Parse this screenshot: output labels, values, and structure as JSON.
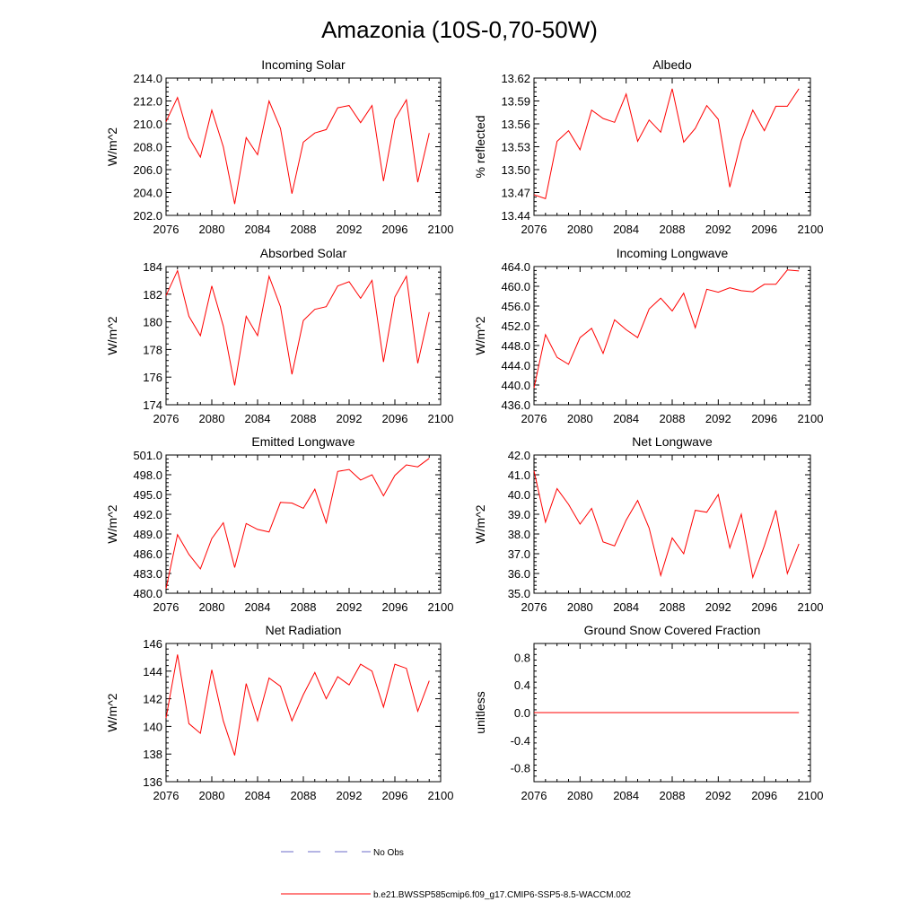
{
  "figure_title": "Amazonia (10S-0,70-50W)",
  "legend": {
    "entries": [
      {
        "label": "No Obs",
        "color": "#6b6bc8",
        "style": "dashed"
      },
      {
        "label": "b.e21.BWSSP585cmip6.f09_g17.CMIP6-SSP5-8.5-WACCM.002",
        "color": "#ff0000",
        "style": "solid"
      }
    ]
  },
  "chart_data": [
    {
      "type": "line",
      "title": "Incoming Solar",
      "ylabel": "W/m^2",
      "xlim": [
        2076,
        2100
      ],
      "ylim": [
        202.0,
        214.0
      ],
      "xticks": [
        2076,
        2080,
        2084,
        2088,
        2092,
        2096,
        2100
      ],
      "yticks": [
        202.0,
        204.0,
        206.0,
        208.0,
        210.0,
        212.0,
        214.0
      ],
      "ytick_labels": [
        "202.0",
        "204.0",
        "206.0",
        "208.0",
        "210.0",
        "212.0",
        "214.0"
      ],
      "series": [
        {
          "name": "b.e21.BWSSP585cmip6.f09_g17.CMIP6-SSP5-8.5-WACCM.002",
          "color": "#ff0000",
          "x": [
            2076,
            2077,
            2078,
            2079,
            2080,
            2081,
            2082,
            2083,
            2084,
            2085,
            2086,
            2087,
            2088,
            2089,
            2090,
            2091,
            2092,
            2093,
            2094,
            2095,
            2096,
            2097,
            2098,
            2099
          ],
          "y": [
            210.2,
            212.3,
            208.8,
            207.1,
            211.2,
            208.0,
            203.0,
            208.8,
            207.3,
            212.0,
            209.6,
            203.9,
            208.4,
            209.2,
            209.5,
            211.4,
            211.6,
            210.1,
            211.6,
            205.0,
            210.4,
            212.1,
            204.9,
            209.2
          ]
        }
      ]
    },
    {
      "type": "line",
      "title": "Albedo",
      "ylabel": "% reflected",
      "xlim": [
        2076,
        2100
      ],
      "ylim": [
        13.44,
        13.62
      ],
      "xticks": [
        2076,
        2080,
        2084,
        2088,
        2092,
        2096,
        2100
      ],
      "yticks": [
        13.44,
        13.47,
        13.5,
        13.53,
        13.56,
        13.59,
        13.62
      ],
      "ytick_labels": [
        "13.44",
        "13.47",
        "13.50",
        "13.53",
        "13.56",
        "13.59",
        "13.62"
      ],
      "series": [
        {
          "name": "b.e21.BWSSP585cmip6.f09_g17.CMIP6-SSP5-8.5-WACCM.002",
          "color": "#ff0000",
          "x": [
            2076,
            2077,
            2078,
            2079,
            2080,
            2081,
            2082,
            2083,
            2084,
            2085,
            2086,
            2087,
            2088,
            2089,
            2090,
            2091,
            2092,
            2093,
            2094,
            2095,
            2096,
            2097,
            2098,
            2099
          ],
          "y": [
            13.467,
            13.462,
            13.537,
            13.551,
            13.526,
            13.578,
            13.567,
            13.562,
            13.599,
            13.537,
            13.565,
            13.549,
            13.606,
            13.536,
            13.554,
            13.584,
            13.566,
            13.477,
            13.538,
            13.578,
            13.551,
            13.583,
            13.583,
            13.606
          ]
        }
      ]
    },
    {
      "type": "line",
      "title": "Absorbed Solar",
      "ylabel": "W/m^2",
      "xlim": [
        2076,
        2100
      ],
      "ylim": [
        174,
        184
      ],
      "xticks": [
        2076,
        2080,
        2084,
        2088,
        2092,
        2096,
        2100
      ],
      "yticks": [
        174,
        176,
        178,
        180,
        182,
        184
      ],
      "ytick_labels": [
        "174",
        "176",
        "178",
        "180",
        "182",
        "184"
      ],
      "series": [
        {
          "name": "b.e21.BWSSP585cmip6.f09_g17.CMIP6-SSP5-8.5-WACCM.002",
          "color": "#ff0000",
          "x": [
            2076,
            2077,
            2078,
            2079,
            2080,
            2081,
            2082,
            2083,
            2084,
            2085,
            2086,
            2087,
            2088,
            2089,
            2090,
            2091,
            2092,
            2093,
            2094,
            2095,
            2096,
            2097,
            2098,
            2099
          ],
          "y": [
            181.9,
            183.7,
            180.4,
            179.0,
            182.6,
            179.7,
            175.4,
            180.4,
            179.0,
            183.3,
            181.1,
            176.2,
            180.1,
            180.9,
            181.1,
            182.6,
            182.9,
            181.7,
            183.0,
            177.1,
            181.8,
            183.3,
            177.0,
            180.7
          ]
        }
      ]
    },
    {
      "type": "line",
      "title": "Incoming Longwave",
      "ylabel": "W/m^2",
      "xlim": [
        2076,
        2100
      ],
      "ylim": [
        436.0,
        464.0
      ],
      "xticks": [
        2076,
        2080,
        2084,
        2088,
        2092,
        2096,
        2100
      ],
      "yticks": [
        436.0,
        440.0,
        444.0,
        448.0,
        452.0,
        456.0,
        460.0,
        464.0
      ],
      "ytick_labels": [
        "436.0",
        "440.0",
        "444.0",
        "448.0",
        "452.0",
        "456.0",
        "460.0",
        "464.0"
      ],
      "series": [
        {
          "name": "b.e21.BWSSP585cmip6.f09_g17.CMIP6-SSP5-8.5-WACCM.002",
          "color": "#ff0000",
          "x": [
            2076,
            2077,
            2078,
            2079,
            2080,
            2081,
            2082,
            2083,
            2084,
            2085,
            2086,
            2087,
            2088,
            2089,
            2090,
            2091,
            2092,
            2093,
            2094,
            2095,
            2096,
            2097,
            2098,
            2099
          ],
          "y": [
            439.4,
            450.2,
            445.6,
            444.2,
            449.6,
            451.5,
            446.4,
            453.2,
            451.2,
            449.6,
            455.4,
            457.6,
            455.0,
            458.6,
            451.6,
            459.4,
            458.8,
            459.7,
            459.1,
            458.9,
            460.4,
            460.4,
            463.3,
            463.1
          ]
        }
      ]
    },
    {
      "type": "line",
      "title": "Emitted Longwave",
      "ylabel": "W/m^2",
      "xlim": [
        2076,
        2100
      ],
      "ylim": [
        480.0,
        501.0
      ],
      "xticks": [
        2076,
        2080,
        2084,
        2088,
        2092,
        2096,
        2100
      ],
      "yticks": [
        480.0,
        483.0,
        486.0,
        489.0,
        492.0,
        495.0,
        498.0,
        501.0
      ],
      "ytick_labels": [
        "480.0",
        "483.0",
        "486.0",
        "489.0",
        "492.0",
        "495.0",
        "498.0",
        "501.0"
      ],
      "series": [
        {
          "name": "b.e21.BWSSP585cmip6.f09_g17.CMIP6-SSP5-8.5-WACCM.002",
          "color": "#ff0000",
          "x": [
            2076,
            2077,
            2078,
            2079,
            2080,
            2081,
            2082,
            2083,
            2084,
            2085,
            2086,
            2087,
            2088,
            2089,
            2090,
            2091,
            2092,
            2093,
            2094,
            2095,
            2096,
            2097,
            2098,
            2099
          ],
          "y": [
            480.7,
            488.9,
            485.9,
            483.7,
            488.3,
            490.7,
            483.9,
            490.6,
            489.7,
            489.3,
            493.8,
            493.7,
            492.9,
            495.8,
            490.7,
            498.5,
            498.8,
            497.2,
            498.0,
            494.8,
            497.9,
            499.5,
            499.2,
            500.5
          ]
        }
      ]
    },
    {
      "type": "line",
      "title": "Net Longwave",
      "ylabel": "W/m^2",
      "xlim": [
        2076,
        2100
      ],
      "ylim": [
        35.0,
        42.0
      ],
      "xticks": [
        2076,
        2080,
        2084,
        2088,
        2092,
        2096,
        2100
      ],
      "yticks": [
        35.0,
        36.0,
        37.0,
        38.0,
        39.0,
        40.0,
        41.0,
        42.0
      ],
      "ytick_labels": [
        "35.0",
        "36.0",
        "37.0",
        "38.0",
        "39.0",
        "40.0",
        "41.0",
        "42.0"
      ],
      "series": [
        {
          "name": "b.e21.BWSSP585cmip6.f09_g17.CMIP6-SSP5-8.5-WACCM.002",
          "color": "#ff0000",
          "x": [
            2076,
            2077,
            2078,
            2079,
            2080,
            2081,
            2082,
            2083,
            2084,
            2085,
            2086,
            2087,
            2088,
            2089,
            2090,
            2091,
            2092,
            2093,
            2094,
            2095,
            2096,
            2097,
            2098,
            2099
          ],
          "y": [
            41.2,
            38.6,
            40.3,
            39.5,
            38.5,
            39.3,
            37.6,
            37.4,
            38.7,
            39.7,
            38.3,
            35.9,
            37.8,
            37.0,
            39.2,
            39.1,
            40.0,
            37.3,
            39.0,
            35.8,
            37.4,
            39.2,
            36.0,
            37.5
          ]
        }
      ]
    },
    {
      "type": "line",
      "title": "Net Radiation",
      "ylabel": "W/m^2",
      "xlim": [
        2076,
        2100
      ],
      "ylim": [
        136,
        146
      ],
      "xticks": [
        2076,
        2080,
        2084,
        2088,
        2092,
        2096,
        2100
      ],
      "yticks": [
        136,
        138,
        140,
        142,
        144,
        146
      ],
      "ytick_labels": [
        "136",
        "138",
        "140",
        "142",
        "144",
        "146"
      ],
      "series": [
        {
          "name": "b.e21.BWSSP585cmip6.f09_g17.CMIP6-SSP5-8.5-WACCM.002",
          "color": "#ff0000",
          "x": [
            2076,
            2077,
            2078,
            2079,
            2080,
            2081,
            2082,
            2083,
            2084,
            2085,
            2086,
            2087,
            2088,
            2089,
            2090,
            2091,
            2092,
            2093,
            2094,
            2095,
            2096,
            2097,
            2098,
            2099
          ],
          "y": [
            140.6,
            145.2,
            140.2,
            139.5,
            144.1,
            140.4,
            137.9,
            143.1,
            140.4,
            143.5,
            142.9,
            140.4,
            142.3,
            143.9,
            142.0,
            143.6,
            143.0,
            144.5,
            144.0,
            141.4,
            144.5,
            144.2,
            141.1,
            143.3
          ]
        }
      ]
    },
    {
      "type": "line",
      "title": "Ground Snow Covered Fraction",
      "ylabel": "unitless",
      "xlim": [
        2076,
        2100
      ],
      "ylim": [
        -1.0,
        1.0
      ],
      "xticks": [
        2076,
        2080,
        2084,
        2088,
        2092,
        2096,
        2100
      ],
      "yticks": [
        -0.8,
        -0.4,
        0.0,
        0.4,
        0.8
      ],
      "ytick_labels": [
        "-0.8",
        "-0.4",
        "0.0",
        "0.4",
        "0.8"
      ],
      "series": [
        {
          "name": "b.e21.BWSSP585cmip6.f09_g17.CMIP6-SSP5-8.5-WACCM.002",
          "color": "#ff0000",
          "x": [
            2076,
            2077,
            2078,
            2079,
            2080,
            2081,
            2082,
            2083,
            2084,
            2085,
            2086,
            2087,
            2088,
            2089,
            2090,
            2091,
            2092,
            2093,
            2094,
            2095,
            2096,
            2097,
            2098,
            2099
          ],
          "y": [
            0,
            0,
            0,
            0,
            0,
            0,
            0,
            0,
            0,
            0,
            0,
            0,
            0,
            0,
            0,
            0,
            0,
            0,
            0,
            0,
            0,
            0,
            0,
            0
          ]
        }
      ]
    }
  ]
}
